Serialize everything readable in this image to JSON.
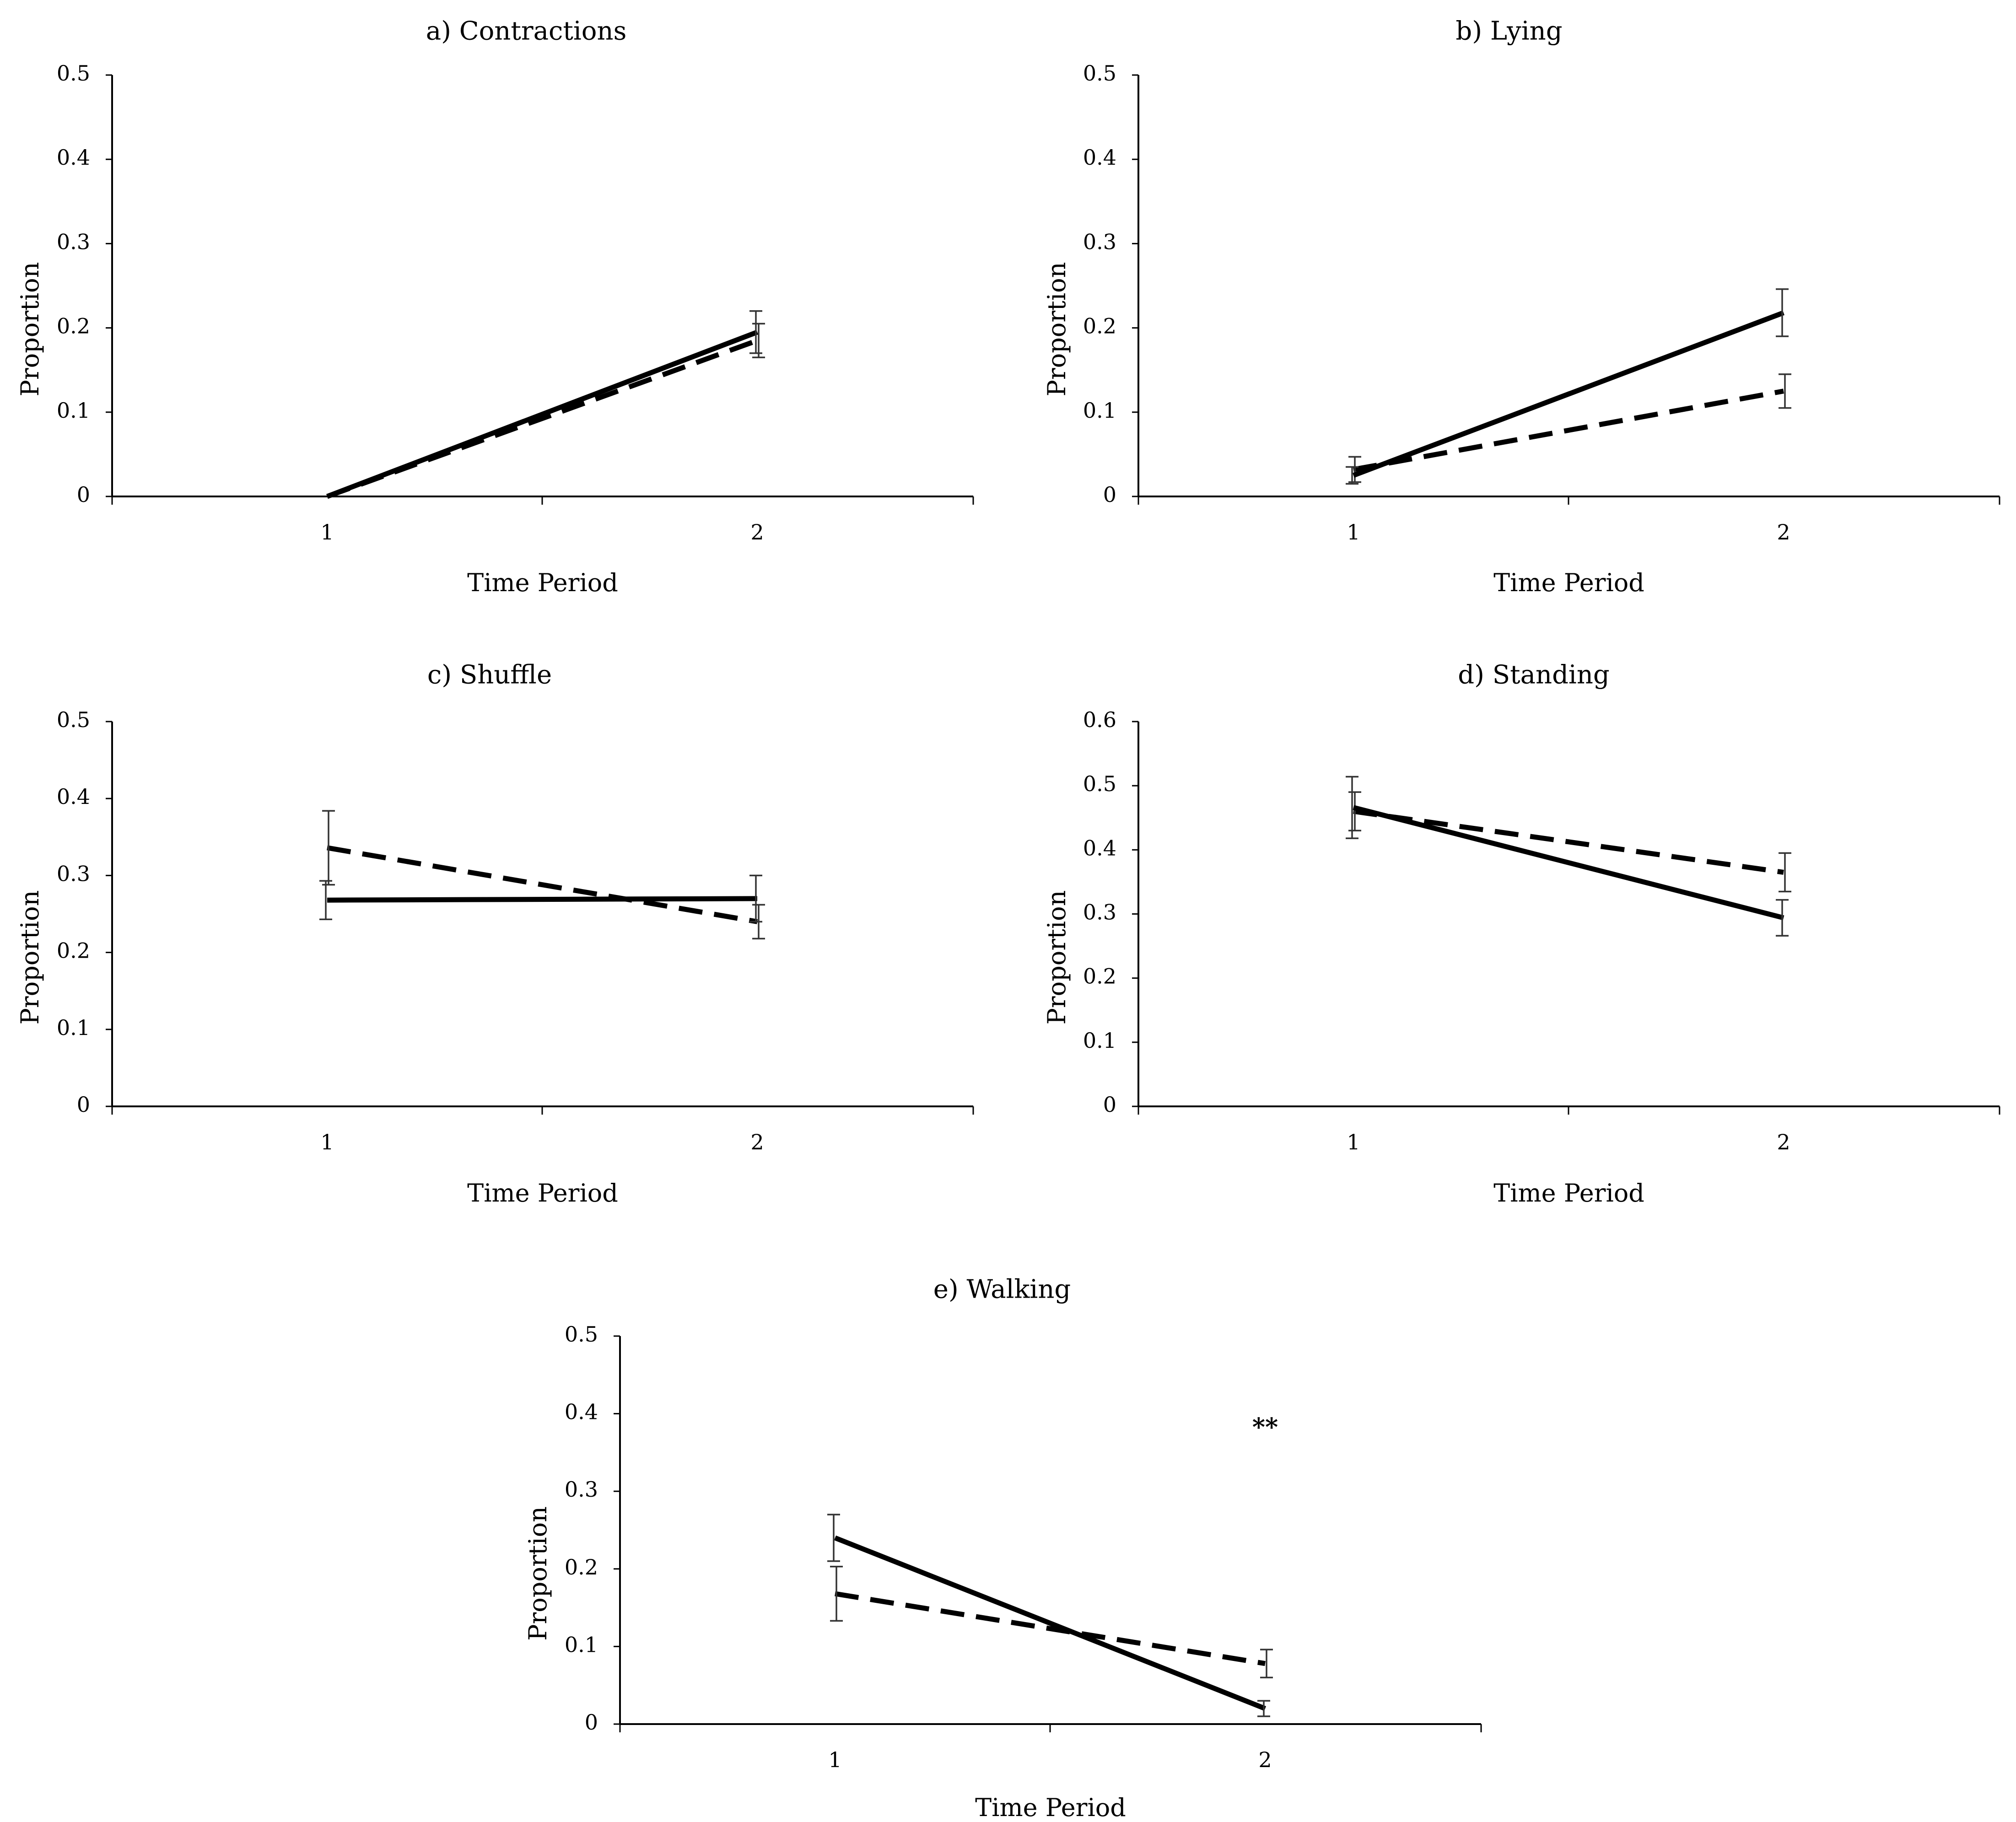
{
  "chart_data": [
    {
      "type": "line",
      "title": "a) Contractions",
      "xlabel": "Time Period",
      "ylabel": "Proportion",
      "categories": [
        "1",
        "2"
      ],
      "ylim": [
        0,
        0.5
      ],
      "yticks": [
        "0",
        "0.1",
        "0.2",
        "0.3",
        "0.4",
        "0.5"
      ],
      "grid": false,
      "series": [
        {
          "style": "solid",
          "values": [
            0.0,
            0.195
          ],
          "errors": [
            0.0,
            0.025
          ]
        },
        {
          "style": "dashed",
          "values": [
            0.0,
            0.185
          ],
          "errors": [
            0.0,
            0.02
          ]
        }
      ],
      "annotations": []
    },
    {
      "type": "line",
      "title": "b) Lying",
      "xlabel": "Time Period",
      "ylabel": "Proportion",
      "categories": [
        "1",
        "2"
      ],
      "ylim": [
        0,
        0.5
      ],
      "yticks": [
        "0",
        "0.1",
        "0.2",
        "0.3",
        "0.4",
        "0.5"
      ],
      "grid": false,
      "series": [
        {
          "style": "solid",
          "values": [
            0.025,
            0.218
          ],
          "errors": [
            0.01,
            0.028
          ]
        },
        {
          "style": "dashed",
          "values": [
            0.032,
            0.125
          ],
          "errors": [
            0.015,
            0.02
          ]
        }
      ],
      "annotations": []
    },
    {
      "type": "line",
      "title": "c) Shuffle",
      "xlabel": "Time Period",
      "ylabel": "Proportion",
      "categories": [
        "1",
        "2"
      ],
      "ylim": [
        0,
        0.5
      ],
      "yticks": [
        "0",
        "0.1",
        "0.2",
        "0.3",
        "0.4",
        "0.5"
      ],
      "grid": false,
      "series": [
        {
          "style": "solid",
          "values": [
            0.268,
            0.27
          ],
          "errors": [
            0.025,
            0.03
          ]
        },
        {
          "style": "dashed",
          "values": [
            0.336,
            0.24
          ],
          "errors": [
            0.048,
            0.022
          ]
        }
      ],
      "annotations": []
    },
    {
      "type": "line",
      "title": "d) Standing",
      "xlabel": "Time Period",
      "ylabel": "Proportion",
      "categories": [
        "1",
        "2"
      ],
      "ylim": [
        0,
        0.6
      ],
      "yticks": [
        "0",
        "0.1",
        "0.2",
        "0.3",
        "0.4",
        "0.5",
        "0.6"
      ],
      "grid": false,
      "series": [
        {
          "style": "solid",
          "values": [
            0.466,
            0.294
          ],
          "errors": [
            0.048,
            0.028
          ]
        },
        {
          "style": "dashed",
          "values": [
            0.46,
            0.365
          ],
          "errors": [
            0.03,
            0.03
          ]
        }
      ],
      "annotations": []
    },
    {
      "type": "line",
      "title": "e) Walking",
      "xlabel": "Time Period",
      "ylabel": "Proportion",
      "categories": [
        "1",
        "2"
      ],
      "ylim": [
        0,
        0.5
      ],
      "yticks": [
        "0",
        "0.1",
        "0.2",
        "0.3",
        "0.4",
        "0.5"
      ],
      "grid": false,
      "series": [
        {
          "style": "solid",
          "values": [
            0.24,
            0.02
          ],
          "errors": [
            0.03,
            0.01
          ]
        },
        {
          "style": "dashed",
          "values": [
            0.168,
            0.078
          ],
          "errors": [
            0.035,
            0.018
          ]
        }
      ],
      "annotations": [
        {
          "text": "**",
          "x": 2,
          "y": 0.38
        }
      ]
    }
  ]
}
